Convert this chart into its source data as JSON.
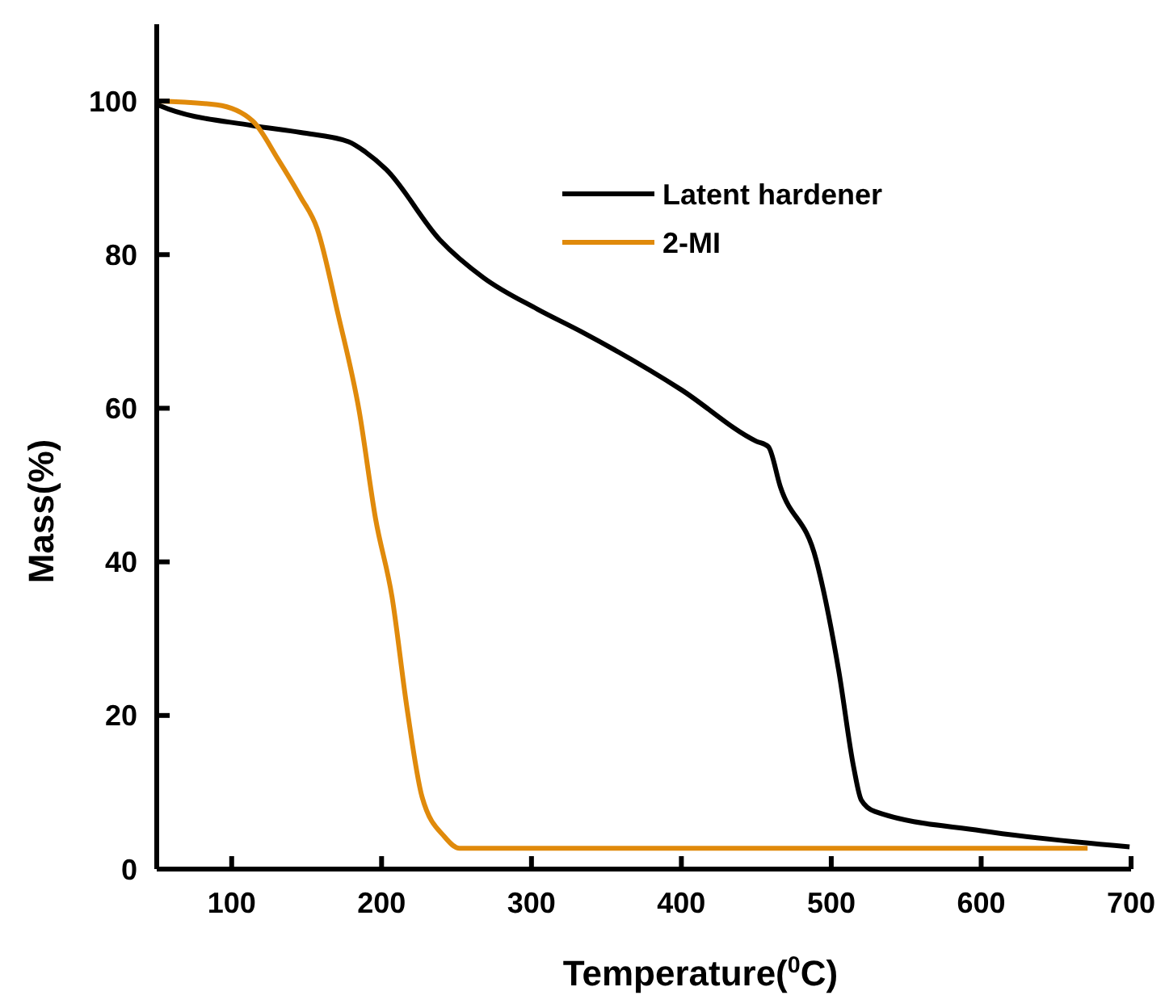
{
  "chart_data": {
    "type": "line",
    "xlabel": "Temperature($^{0}$C)",
    "ylabel": "Mass(%)",
    "xlim": [
      50,
      700
    ],
    "ylim": [
      0,
      110
    ],
    "xticks": [
      100,
      200,
      300,
      400,
      500,
      600,
      700
    ],
    "yticks": [
      0,
      20,
      40,
      60,
      80,
      100
    ],
    "grid": false,
    "legend": "top right",
    "marker": "none",
    "line_style": "solid",
    "series": [
      {
        "name": "Latent hardener",
        "color": "#000000",
        "x": [
          50,
          52,
          114,
          146,
          178,
          189,
          203,
          239,
          268,
          304,
          333,
          400,
          450,
          458,
          466,
          490,
          505,
          515,
          520,
          529,
          600,
          699
        ],
        "values": [
          99.8,
          99.4,
          96.8,
          95.9,
          94.7,
          93.4,
          91.1,
          81.9,
          77,
          72.9,
          70,
          62.4,
          55.7,
          55,
          49.8,
          40.2,
          25.8,
          13.2,
          9,
          7.5,
          5,
          2.9
        ]
      },
      {
        "name": "2-MI",
        "color": "#e08a0b",
        "x": [
          50,
          90,
          114,
          131,
          146,
          157,
          171,
          185,
          196,
          207,
          217,
          227,
          242,
          252,
          671
        ],
        "values": [
          100,
          99.5,
          97.4,
          92.4,
          87.5,
          83.4,
          72.2,
          59.7,
          45.6,
          35.4,
          20.9,
          9.4,
          4.2,
          2.7,
          2.7
        ]
      }
    ]
  }
}
